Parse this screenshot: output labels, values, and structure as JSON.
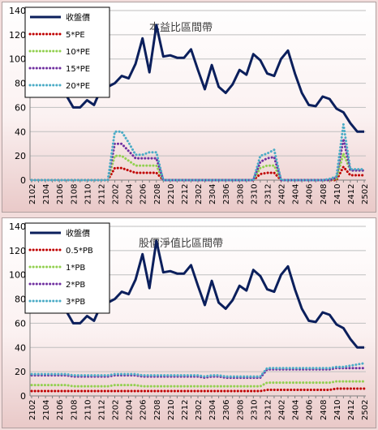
{
  "chart_data": [
    {
      "type": "line",
      "title": "本益比區間帶",
      "xlabel": "",
      "ylabel": "",
      "ylim": [
        0,
        140
      ],
      "yticks": [
        0,
        20,
        40,
        60,
        80,
        100,
        120,
        140
      ],
      "x_ticks": [
        "2102",
        "2104",
        "2106",
        "2108",
        "2110",
        "2112",
        "2202",
        "2204",
        "2206",
        "2208",
        "2210",
        "2212",
        "2302",
        "2304",
        "2306",
        "2308",
        "2310",
        "2312",
        "2402",
        "2404",
        "2406",
        "2408",
        "2410",
        "2412",
        "2502"
      ],
      "grid": "horizontal",
      "legend": "top-left",
      "series": [
        {
          "name": "收盤價",
          "color": "#0b1f5c",
          "style": "solid",
          "values": [
            80,
            74,
            77,
            76,
            74,
            70,
            60,
            60,
            66,
            62,
            75,
            77,
            80,
            86,
            84,
            96,
            117,
            89,
            128,
            102,
            103,
            101,
            101,
            108,
            91,
            75,
            95,
            77,
            72,
            79,
            91,
            87,
            104,
            99,
            88,
            86,
            100,
            107,
            88,
            72,
            62,
            61,
            69,
            67,
            59,
            56,
            47,
            40,
            40
          ]
        },
        {
          "name": "5*PE",
          "color": "#c00000",
          "style": "dotted",
          "values": [
            0,
            0,
            0,
            0,
            0,
            0,
            0,
            0,
            0,
            0,
            0,
            0,
            10,
            10,
            8,
            6,
            6,
            6,
            6,
            0,
            0,
            0,
            0,
            0,
            0,
            0,
            0,
            0,
            0,
            0,
            0,
            0,
            0,
            5,
            6,
            6,
            0,
            0,
            0,
            0,
            0,
            0,
            0,
            0,
            0,
            11,
            4,
            4,
            4
          ]
        },
        {
          "name": "10*PE",
          "color": "#92d050",
          "style": "dotted",
          "values": [
            0,
            0,
            0,
            0,
            0,
            0,
            0,
            0,
            0,
            0,
            0,
            0,
            20,
            20,
            16,
            12,
            12,
            12,
            12,
            0,
            0,
            0,
            0,
            0,
            0,
            0,
            0,
            0,
            0,
            0,
            0,
            0,
            0,
            10,
            12,
            12,
            0,
            0,
            0,
            0,
            0,
            0,
            0,
            0,
            1,
            22,
            8,
            8,
            8
          ]
        },
        {
          "name": "15*PE",
          "color": "#7030a0",
          "style": "dotted",
          "values": [
            0,
            0,
            0,
            0,
            0,
            0,
            0,
            0,
            0,
            0,
            0,
            0,
            30,
            30,
            24,
            18,
            18,
            18,
            18,
            0,
            0,
            0,
            0,
            0,
            0,
            0,
            0,
            0,
            0,
            0,
            0,
            0,
            0,
            15,
            18,
            19,
            0,
            0,
            0,
            0,
            0,
            0,
            0,
            0,
            2,
            34,
            8,
            8,
            8
          ]
        },
        {
          "name": "20*PE",
          "color": "#4bacc6",
          "style": "dotted",
          "values": [
            0,
            0,
            0,
            0,
            0,
            0,
            0,
            0,
            0,
            0,
            0,
            0,
            40,
            40,
            31,
            21,
            21,
            23,
            23,
            0,
            0,
            0,
            0,
            0,
            0,
            0,
            0,
            0,
            0,
            0,
            0,
            0,
            0,
            20,
            22,
            25,
            0,
            0,
            0,
            0,
            0,
            0,
            0,
            1,
            3,
            46,
            9,
            9,
            9
          ]
        }
      ]
    },
    {
      "type": "line",
      "title": "股價淨值比區間帶",
      "xlabel": "",
      "ylabel": "",
      "ylim": [
        0,
        140
      ],
      "yticks": [
        0,
        20,
        40,
        60,
        80,
        100,
        120,
        140
      ],
      "x_ticks": [
        "2102",
        "2104",
        "2106",
        "2108",
        "2110",
        "2112",
        "2202",
        "2204",
        "2206",
        "2208",
        "2210",
        "2212",
        "2302",
        "2304",
        "2306",
        "2308",
        "2310",
        "2312",
        "2402",
        "2404",
        "2406",
        "2408",
        "2410",
        "2412",
        "2502"
      ],
      "grid": "horizontal",
      "legend": "top-left",
      "series": [
        {
          "name": "收盤價",
          "color": "#0b1f5c",
          "style": "solid",
          "values": [
            80,
            74,
            77,
            76,
            74,
            70,
            60,
            60,
            66,
            62,
            75,
            77,
            80,
            86,
            84,
            96,
            117,
            89,
            128,
            102,
            103,
            101,
            101,
            108,
            91,
            75,
            95,
            77,
            72,
            79,
            91,
            87,
            104,
            99,
            88,
            86,
            100,
            107,
            88,
            72,
            62,
            61,
            69,
            67,
            59,
            56,
            47,
            40,
            40
          ]
        },
        {
          "name": "0.5*PB",
          "color": "#c00000",
          "style": "dotted",
          "values": [
            4,
            4,
            4,
            4,
            4,
            4,
            4,
            4,
            4,
            4,
            4,
            4,
            4,
            4,
            4,
            4,
            4,
            4,
            4,
            4,
            4,
            4,
            4,
            4,
            4,
            4,
            4,
            4,
            4,
            4,
            4,
            4,
            4,
            4,
            5,
            5,
            5,
            5,
            5,
            5,
            5,
            5,
            5,
            5,
            6,
            6,
            6,
            6,
            6
          ]
        },
        {
          "name": "1*PB",
          "color": "#92d050",
          "style": "dotted",
          "values": [
            9,
            9,
            9,
            9,
            9,
            9,
            8,
            8,
            8,
            8,
            8,
            8,
            9,
            9,
            9,
            9,
            8,
            8,
            8,
            8,
            8,
            8,
            8,
            8,
            8,
            8,
            8,
            8,
            8,
            8,
            8,
            8,
            8,
            8,
            11,
            11,
            11,
            11,
            11,
            11,
            11,
            11,
            11,
            11,
            12,
            12,
            12,
            12,
            12
          ]
        },
        {
          "name": "2*PB",
          "color": "#7030a0",
          "style": "dotted",
          "values": [
            17,
            17,
            17,
            17,
            17,
            17,
            16,
            16,
            16,
            16,
            16,
            16,
            17,
            17,
            17,
            17,
            16,
            16,
            16,
            16,
            16,
            16,
            16,
            16,
            16,
            15,
            16,
            16,
            15,
            15,
            15,
            15,
            15,
            15,
            22,
            22,
            22,
            22,
            22,
            22,
            22,
            22,
            22,
            22,
            23,
            23,
            23,
            23,
            23
          ]
        },
        {
          "name": "3*PB",
          "color": "#4bacc6",
          "style": "dotted",
          "values": [
            18,
            18,
            18,
            18,
            18,
            18,
            17,
            17,
            17,
            17,
            17,
            17,
            18,
            18,
            18,
            18,
            17,
            17,
            17,
            17,
            17,
            17,
            17,
            17,
            17,
            16,
            17,
            17,
            16,
            16,
            16,
            16,
            16,
            16,
            23,
            23,
            23,
            23,
            23,
            23,
            23,
            23,
            23,
            23,
            24,
            24,
            25,
            26,
            27
          ]
        }
      ]
    }
  ]
}
